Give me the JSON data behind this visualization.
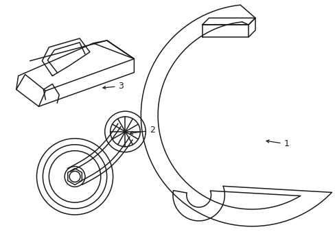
{
  "background_color": "#ffffff",
  "line_color": "#1a1a1a",
  "line_width": 1.1,
  "label_fontsize": 9,
  "figsize": [
    4.89,
    3.6
  ],
  "dpi": 100
}
